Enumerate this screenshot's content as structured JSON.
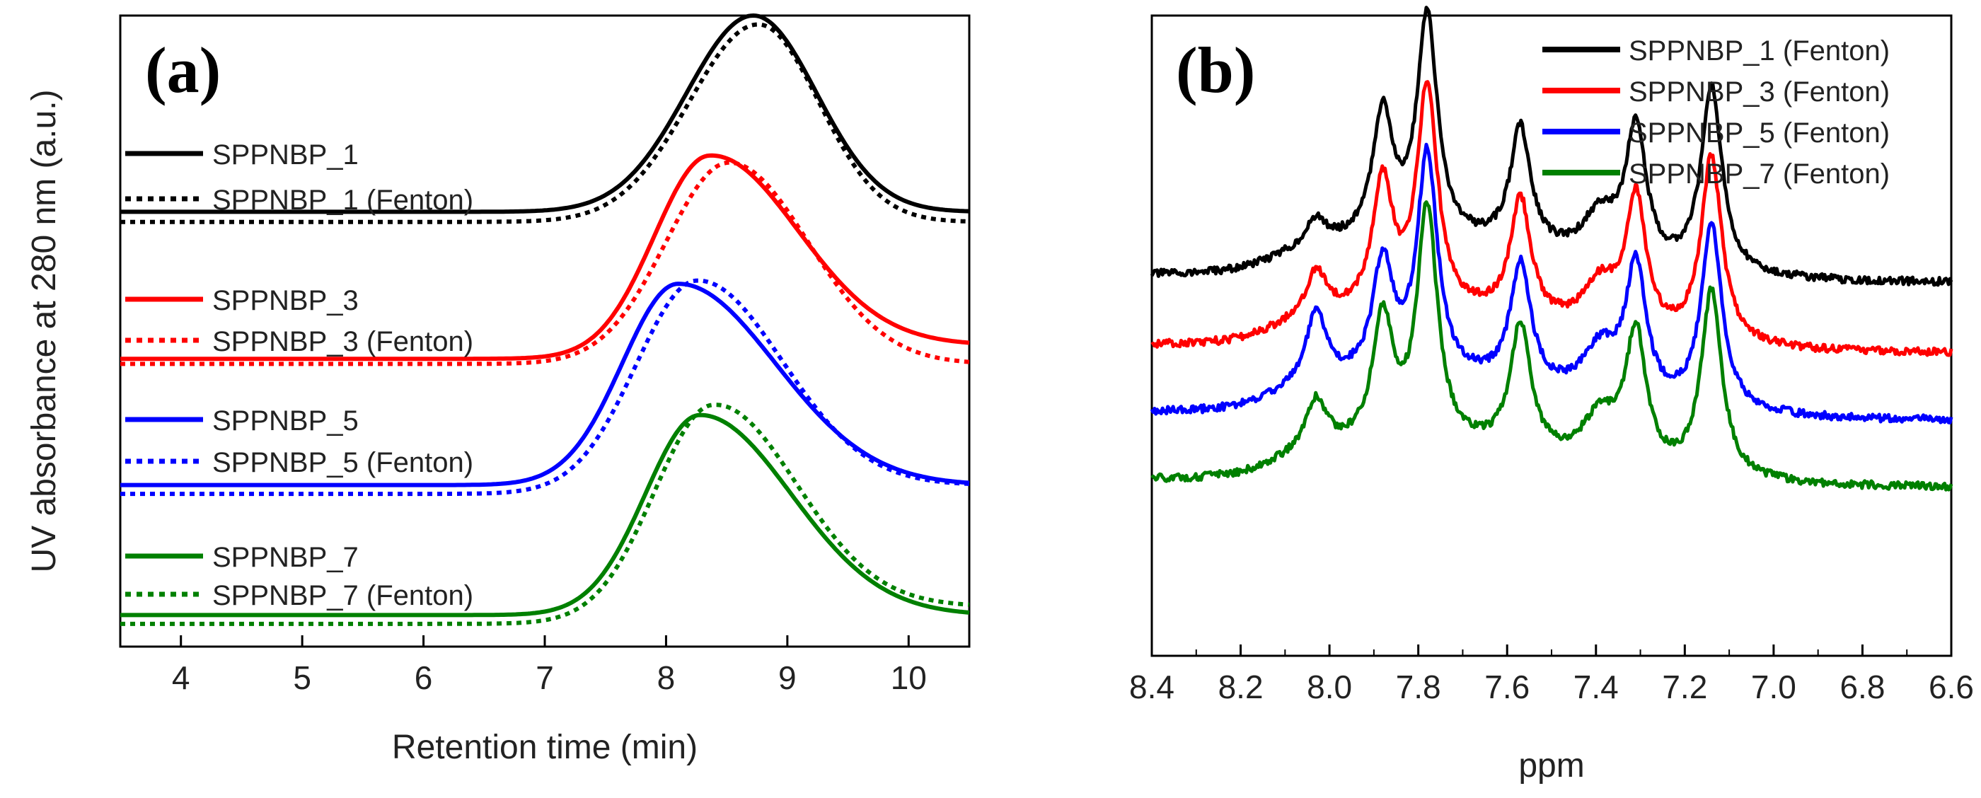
{
  "chart_data": [
    {
      "panel": "(a)",
      "type": "line",
      "xlabel": "Retention time (min)",
      "ylabel": "UV absorbance at 280 nm (a.u.)",
      "xlim": [
        3.5,
        10.5
      ],
      "xticks": [
        4,
        5,
        6,
        7,
        8,
        9,
        10
      ],
      "ylim": [
        0,
        1
      ],
      "yticks_shown": false,
      "grid": false,
      "legend_position": "left, beside each curve",
      "series": [
        {
          "name": "SPPNBP_1",
          "color": "#000000",
          "style": "solid",
          "baseline": 0.689,
          "peak_x": 8.72,
          "peak_height": 0.311,
          "left_width": 0.55,
          "right_width": 0.52,
          "tail": 0.0
        },
        {
          "name": "SPPNBP_1 (Fenton)",
          "color": "#000000",
          "style": "dotted",
          "baseline": 0.673,
          "peak_x": 8.76,
          "peak_height": 0.313,
          "left_width": 0.57,
          "right_width": 0.5,
          "tail": 0.0
        },
        {
          "name": "SPPNBP_3",
          "color": "#ff0000",
          "style": "solid",
          "baseline": 0.456,
          "peak_x": 8.35,
          "peak_height": 0.311,
          "left_width": 0.45,
          "right_width": 0.72,
          "tail": 0.022
        },
        {
          "name": "SPPNBP_3 (Fenton)",
          "color": "#ff0000",
          "style": "dotted",
          "baseline": 0.448,
          "peak_x": 8.52,
          "peak_height": 0.319,
          "left_width": 0.52,
          "right_width": 0.65,
          "tail": 0.0
        },
        {
          "name": "SPPNBP_5",
          "color": "#0000ff",
          "style": "solid",
          "baseline": 0.256,
          "peak_x": 8.1,
          "peak_height": 0.319,
          "left_width": 0.46,
          "right_width": 0.8,
          "tail": 0.0
        },
        {
          "name": "SPPNBP_5 (Fenton)",
          "color": "#0000ff",
          "style": "dotted",
          "baseline": 0.242,
          "peak_x": 8.25,
          "peak_height": 0.331,
          "left_width": 0.5,
          "right_width": 0.7,
          "tail": 0.014
        },
        {
          "name": "SPPNBP_7",
          "color": "#008000",
          "style": "solid",
          "baseline": 0.05,
          "peak_x": 8.28,
          "peak_height": 0.317,
          "left_width": 0.45,
          "right_width": 0.75,
          "tail": 0.0
        },
        {
          "name": "SPPNBP_7 (Fenton)",
          "color": "#008000",
          "style": "dotted",
          "baseline": 0.036,
          "peak_x": 8.38,
          "peak_height": 0.333,
          "left_width": 0.48,
          "right_width": 0.68,
          "tail": 0.028
        }
      ]
    },
    {
      "panel": "(b)",
      "type": "line",
      "xlabel": "ppm",
      "ylabel": "",
      "xlim": [
        8.4,
        6.6
      ],
      "x_reversed": true,
      "xticks": [
        "8.4",
        "8.2",
        "8.0",
        "7.8",
        "7.6",
        "7.4",
        "7.2",
        "7.0",
        "6.8",
        "6.6"
      ],
      "ylim": [
        0,
        1
      ],
      "yticks_shown": false,
      "grid": false,
      "legend_position": "top-right",
      "peak_positions": [
        8.03,
        7.88,
        7.78,
        7.57,
        7.39,
        7.31,
        7.14
      ],
      "series": [
        {
          "name": "SPPNBP_1 (Fenton)",
          "color": "#000000",
          "baseline": 0.595,
          "peak_heights": [
            0.04,
            0.2,
            0.35,
            0.187,
            0.075,
            0.21,
            0.29
          ]
        },
        {
          "name": "SPPNBP_3 (Fenton)",
          "color": "#ff0000",
          "baseline": 0.485,
          "peak_heights": [
            0.07,
            0.2,
            0.35,
            0.187,
            0.075,
            0.21,
            0.29
          ]
        },
        {
          "name": "SPPNBP_5 (Fenton)",
          "color": "#0000ff",
          "baseline": 0.38,
          "peak_heights": [
            0.11,
            0.18,
            0.35,
            0.19,
            0.08,
            0.21,
            0.29
          ]
        },
        {
          "name": "SPPNBP_7 (Fenton)",
          "color": "#008000",
          "baseline": 0.275,
          "peak_heights": [
            0.08,
            0.2,
            0.37,
            0.2,
            0.08,
            0.21,
            0.29
          ]
        }
      ]
    }
  ]
}
